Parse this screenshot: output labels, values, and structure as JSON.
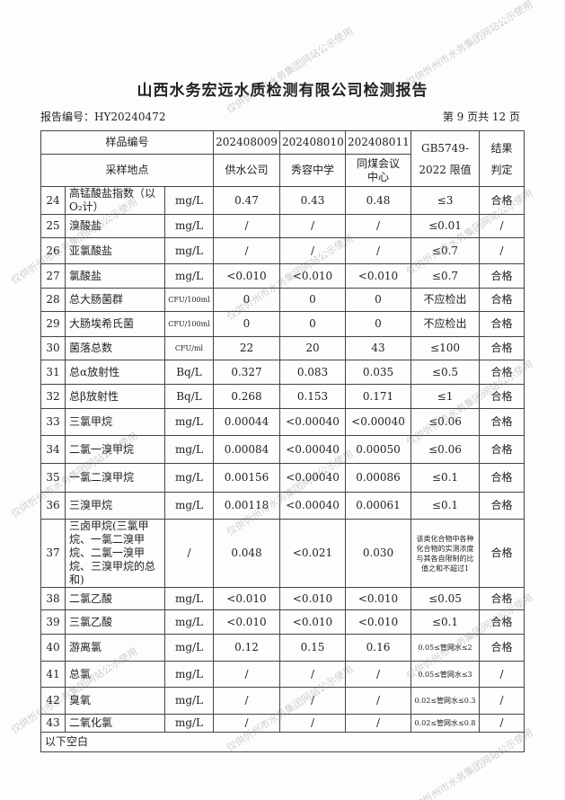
{
  "title": "山西水务宏远水质检测有限公司检测报告",
  "report_no": "报告编号：HY20240472",
  "page_info": "第 9 页共 12 页",
  "header": {
    "sample_no_label": "样品编号",
    "site_label": "采样地点",
    "samples": [
      "202408009",
      "202408010",
      "202408011"
    ],
    "sites": [
      "供水公司",
      "秀容中学",
      "同煤会议中心"
    ],
    "limit_label": "GB5749-2022 限值",
    "result_label": "结果判定"
  },
  "rows": [
    {
      "no": "24",
      "name": "高锰酸盐指数（以O₂计）",
      "unit": "mg/L",
      "v": [
        "0.47",
        "0.43",
        "0.48"
      ],
      "limit": "≤3",
      "result": "合格"
    },
    {
      "no": "25",
      "name": "溴酸盐",
      "unit": "mg/L",
      "v": [
        "/",
        "/",
        "/"
      ],
      "limit": "≤0.01",
      "result": "/"
    },
    {
      "no": "26",
      "name": "亚氯酸盐",
      "unit": "mg/L",
      "v": [
        "/",
        "/",
        "/"
      ],
      "limit": "≤0.7",
      "result": "/"
    },
    {
      "no": "27",
      "name": "氯酸盐",
      "unit": "mg/L",
      "v": [
        "<0.010",
        "<0.010",
        "<0.010"
      ],
      "limit": "≤0.7",
      "result": "合格"
    },
    {
      "no": "28",
      "name": "总大肠菌群",
      "unit": "CFU/100ml",
      "v": [
        "0",
        "0",
        "0"
      ],
      "limit": "不应检出",
      "result": "合格"
    },
    {
      "no": "29",
      "name": "大肠埃希氏菌",
      "unit": "CFU/100ml",
      "v": [
        "0",
        "0",
        "0"
      ],
      "limit": "不应检出",
      "result": "合格"
    },
    {
      "no": "30",
      "name": "菌落总数",
      "unit": "CFU/ml",
      "v": [
        "22",
        "20",
        "43"
      ],
      "limit": "≤100",
      "result": "合格"
    },
    {
      "no": "31",
      "name": "总α放射性",
      "unit": "Bq/L",
      "v": [
        "0.327",
        "0.083",
        "0.035"
      ],
      "limit": "≤0.5",
      "result": "合格"
    },
    {
      "no": "32",
      "name": "总β放射性",
      "unit": "Bq/L",
      "v": [
        "0.268",
        "0.153",
        "0.171"
      ],
      "limit": "≤1",
      "result": "合格"
    },
    {
      "no": "33",
      "name": "三氯甲烷",
      "unit": "mg/L",
      "v": [
        "0.00044",
        "<0.00040",
        "<0.00040"
      ],
      "limit": "≤0.06",
      "result": "合格"
    },
    {
      "no": "34",
      "name": "二氯一溴甲烷",
      "unit": "mg/L",
      "v": [
        "0.00084",
        "<0.00040",
        "0.00050"
      ],
      "limit": "≤0.06",
      "result": "合格"
    },
    {
      "no": "35",
      "name": "一氯二溴甲烷",
      "unit": "mg/L",
      "v": [
        "0.00156",
        "<0.00040",
        "0.00086"
      ],
      "limit": "≤0.1",
      "result": "合格"
    },
    {
      "no": "36",
      "name": "三溴甲烷",
      "unit": "mg/L",
      "v": [
        "0.00118",
        "<0.00040",
        "0.00061"
      ],
      "limit": "≤0.1",
      "result": "合格"
    },
    {
      "no": "37",
      "name": "三卤甲烷(三氯甲烷、一氯二溴甲烷、二氯一溴甲烷、三溴甲烷的总和)",
      "unit": "/",
      "v": [
        "0.048",
        "<0.021",
        "0.030"
      ],
      "limit": "该类化合物中各种化合物的实测浓度与其各自限制的比值之和不超过1",
      "result": "合格"
    },
    {
      "no": "38",
      "name": "二氯乙酸",
      "unit": "mg/L",
      "v": [
        "<0.010",
        "<0.010",
        "<0.010"
      ],
      "limit": "≤0.05",
      "result": "合格"
    },
    {
      "no": "39",
      "name": "三氯乙酸",
      "unit": "mg/L",
      "v": [
        "<0.010",
        "<0.010",
        "<0.010"
      ],
      "limit": "≤0.1",
      "result": "合格"
    },
    {
      "no": "40",
      "name": "游离氯",
      "unit": "mg/L",
      "v": [
        "0.12",
        "0.15",
        "0.16"
      ],
      "limit": "0.05≤管网水≤2",
      "result": "合格"
    },
    {
      "no": "41",
      "name": "总氯",
      "unit": "mg/L",
      "v": [
        "/",
        "/",
        "/"
      ],
      "limit": "0.05≤管网水≤3",
      "result": "/"
    },
    {
      "no": "42",
      "name": "臭氧",
      "unit": "mg/L",
      "v": [
        "/",
        "/",
        "/"
      ],
      "limit": "0.02≤管网水≤0.3",
      "result": "/"
    },
    {
      "no": "43",
      "name": "二氧化氯",
      "unit": "mg/L",
      "v": [
        "/",
        "/",
        "/"
      ],
      "limit": "0.02≤管网水≤0.8",
      "result": "/"
    }
  ],
  "footer_note": "以下空白",
  "watermark": "仅供忻州市水务集团网站公示使用"
}
